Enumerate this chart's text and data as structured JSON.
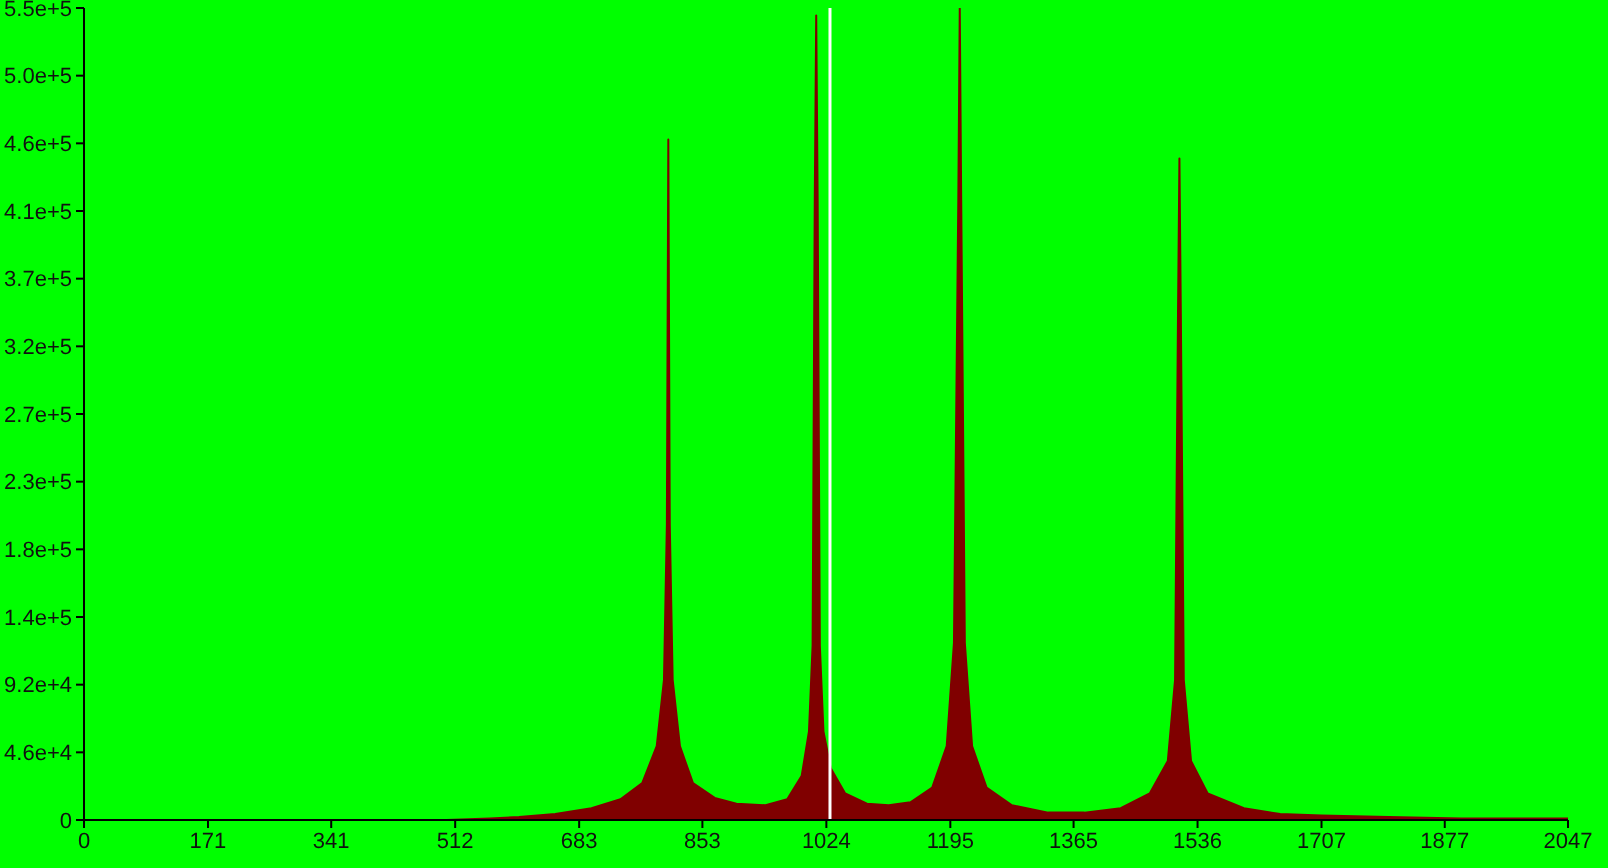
{
  "chart_data": {
    "type": "area",
    "xlim": [
      0,
      2047
    ],
    "xticks": [
      0,
      171,
      341,
      512,
      683,
      853,
      1024,
      1195,
      1365,
      1536,
      1707,
      1877,
      2047
    ],
    "ylim": [
      0,
      550000
    ],
    "yticks": [
      0,
      {
        "value": 45833,
        "label": "4.6e+4"
      },
      {
        "value": 91667,
        "label": "9.2e+4"
      },
      {
        "value": 137500,
        "label": "1.4e+5"
      },
      {
        "value": 183333,
        "label": "1.8e+5"
      },
      {
        "value": 229167,
        "label": "2.3e+5"
      },
      {
        "value": 275000,
        "label": "2.7e+5"
      },
      {
        "value": 320833,
        "label": "3.2e+5"
      },
      {
        "value": 366667,
        "label": "3.7e+5"
      },
      {
        "value": 412500,
        "label": "4.1e+5"
      },
      {
        "value": 458333,
        "label": "4.6e+5"
      },
      {
        "value": 504167,
        "label": "5.0e+5"
      },
      {
        "value": 550000,
        "label": "5.5e+5"
      }
    ],
    "x": [
      0,
      500,
      560,
      600,
      650,
      700,
      740,
      770,
      790,
      800,
      804,
      806,
      808,
      812,
      822,
      840,
      870,
      900,
      940,
      970,
      990,
      1000,
      1005,
      1008,
      1010,
      1012,
      1015,
      1020,
      1030,
      1050,
      1080,
      1110,
      1140,
      1170,
      1190,
      1200,
      1206,
      1208,
      1210,
      1215,
      1225,
      1245,
      1280,
      1330,
      1380,
      1430,
      1470,
      1495,
      1505,
      1509,
      1511,
      1513,
      1517,
      1527,
      1550,
      1600,
      1650,
      1707,
      1800,
      1900,
      2047
    ],
    "series": [
      {
        "color": "#800000",
        "values": [
          0,
          0,
          1000,
          2000,
          4000,
          8000,
          14000,
          25000,
          50000,
          95000,
          200000,
          461000,
          200000,
          95000,
          50000,
          25000,
          15000,
          11000,
          10000,
          14000,
          30000,
          60000,
          118000,
          420000,
          545000,
          420000,
          118000,
          60000,
          35000,
          18000,
          11000,
          10000,
          12000,
          22000,
          50000,
          120000,
          420000,
          550000,
          420000,
          120000,
          50000,
          22000,
          10000,
          5000,
          5000,
          8000,
          18000,
          40000,
          95000,
          340000,
          448000,
          340000,
          95000,
          40000,
          18000,
          8000,
          4000,
          3000,
          2000,
          1000,
          1000
        ]
      }
    ],
    "ref_lines": [
      {
        "axis": "x",
        "value": 1029,
        "color": "#ffffff"
      }
    ],
    "grid": false,
    "legend": false,
    "marker": "none"
  }
}
